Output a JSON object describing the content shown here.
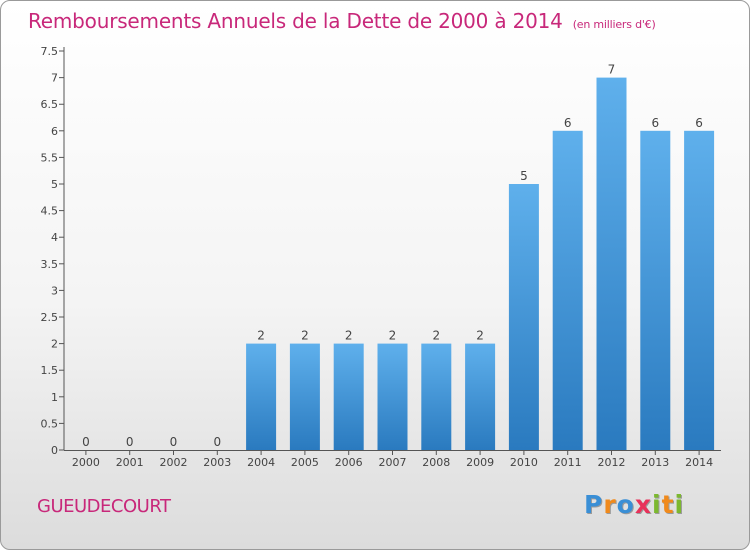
{
  "title": "Remboursements Annuels de la Dette de 2000 à 2014",
  "subtitle": "(en milliers d'€)",
  "place": "GUEUDECOURT",
  "brand": {
    "letters": [
      "P",
      "r",
      "o",
      "x",
      "i",
      "t",
      "i"
    ],
    "colors": [
      "#3a8fd6",
      "#f08a1c",
      "#3a8fd6",
      "#e8325a",
      "#7cb82f",
      "#f08a1c",
      "#7cb82f"
    ]
  },
  "colors": {
    "title": "#c8287a",
    "bar_top": "#5fb0ec",
    "bar_bottom": "#2a7abf",
    "axis": "#555555",
    "grid_tick": "#555555"
  },
  "chart_data": {
    "type": "bar",
    "title": "Remboursements Annuels de la Dette de 2000 à 2014",
    "subtitle": "(en milliers d'€)",
    "categories": [
      "2000",
      "2001",
      "2002",
      "2003",
      "2004",
      "2005",
      "2006",
      "2007",
      "2008",
      "2009",
      "2010",
      "2011",
      "2012",
      "2013",
      "2014"
    ],
    "values": [
      0,
      0,
      0,
      0,
      2,
      2,
      2,
      2,
      2,
      2,
      5,
      6,
      7,
      6,
      6
    ],
    "data_labels": [
      "0",
      "0",
      "0",
      "0",
      "2",
      "2",
      "2",
      "2",
      "2",
      "2",
      "5",
      "6",
      "7",
      "6",
      "6"
    ],
    "ylim": [
      0,
      7.5
    ],
    "y_ticks": [
      {
        "value": 0,
        "label": "0"
      },
      {
        "value": 0.5,
        "label": "0.5"
      },
      {
        "value": 1,
        "label": "1"
      },
      {
        "value": 1.5,
        "label": "1.5"
      },
      {
        "value": 2,
        "label": "2"
      },
      {
        "value": 2.5,
        "label": "2.5"
      },
      {
        "value": 3,
        "label": "3"
      },
      {
        "value": 3.5,
        "label": "3.5"
      },
      {
        "value": 4,
        "label": "4"
      },
      {
        "value": 4.5,
        "label": "4.5"
      },
      {
        "value": 5,
        "label": "5"
      },
      {
        "value": 5.5,
        "label": "5.5"
      },
      {
        "value": 6,
        "label": "6"
      },
      {
        "value": 6.5,
        "label": "6.5"
      },
      {
        "value": 7,
        "label": "7"
      },
      {
        "value": 7.5,
        "label": "7.5"
      }
    ],
    "grid": false,
    "legend": "none"
  }
}
